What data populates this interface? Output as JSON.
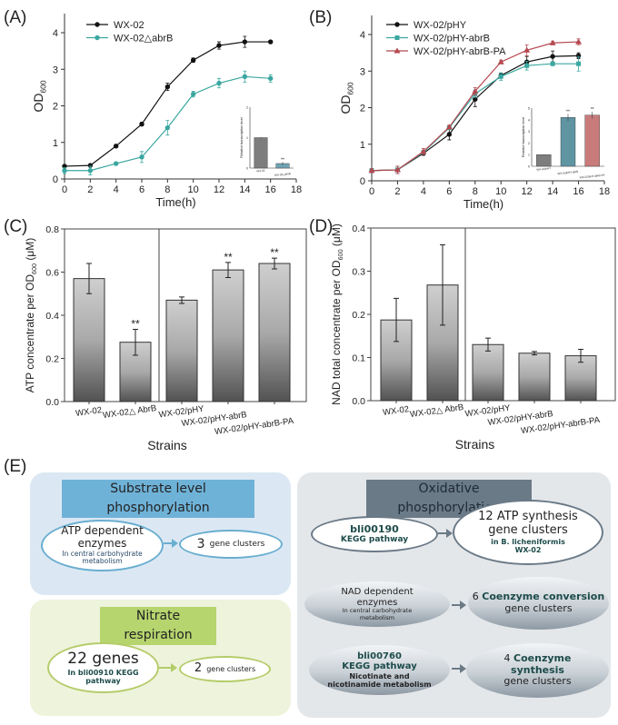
{
  "panel_labels": {
    "a": "(A)",
    "b": "(B)",
    "c": "(C)",
    "d": "(D)",
    "e": "(E)"
  },
  "chart_data": [
    {
      "id": "A",
      "type": "line",
      "xlabel": "Time(h)",
      "ylabel": "OD",
      "ylabel_sub": "600",
      "xlim": [
        0,
        18
      ],
      "ylim": [
        0,
        4.4
      ],
      "xticks": [
        0,
        2,
        4,
        6,
        8,
        10,
        12,
        14,
        16,
        18
      ],
      "yticks": [
        0,
        1,
        2,
        3,
        4
      ],
      "x": [
        0,
        2,
        4,
        6,
        8,
        10,
        12,
        14,
        16
      ],
      "series": [
        {
          "name": "WX-02",
          "color": "#111111",
          "marker": "circle",
          "values": [
            0.35,
            0.37,
            0.9,
            1.5,
            2.52,
            3.25,
            3.65,
            3.75,
            3.75
          ],
          "err": [
            0.04,
            0.03,
            0.04,
            0.05,
            0.1,
            0.06,
            0.1,
            0.15,
            0.04
          ]
        },
        {
          "name": "WX-02△abrB",
          "color": "#3aa7a0",
          "marker": "circle",
          "values": [
            0.23,
            0.23,
            0.42,
            0.6,
            1.4,
            2.32,
            2.62,
            2.8,
            2.75
          ],
          "err": [
            0.08,
            0.12,
            0.03,
            0.15,
            0.2,
            0.08,
            0.13,
            0.15,
            0.1
          ]
        }
      ],
      "inset": {
        "type": "bar",
        "ylabel": "Relative transcription level",
        "yticks": [
          0,
          1,
          2
        ],
        "ylim": [
          0,
          2
        ],
        "categories": [
          "WX-02",
          "WX-02△abrB"
        ],
        "values": [
          1.0,
          0.15
        ],
        "err": [
          0.02,
          0.05
        ],
        "colors": [
          "#7d7d7d",
          "#6fa3b4"
        ],
        "stars": [
          "",
          "**"
        ]
      }
    },
    {
      "id": "B",
      "type": "line",
      "xlabel": "Time(h)",
      "ylabel": "OD",
      "ylabel_sub": "600",
      "xlim": [
        0,
        18
      ],
      "ylim": [
        0,
        4.4
      ],
      "xticks": [
        0,
        2,
        4,
        6,
        8,
        10,
        12,
        14,
        16,
        18
      ],
      "yticks": [
        0,
        1,
        2,
        3,
        4
      ],
      "x": [
        0,
        2,
        4,
        6,
        8,
        10,
        12,
        14,
        16
      ],
      "series": [
        {
          "name": "WX-02/pHY",
          "color": "#111111",
          "marker": "circle",
          "values": [
            0.28,
            0.3,
            0.75,
            1.27,
            2.23,
            2.88,
            3.25,
            3.4,
            3.42
          ],
          "err": [
            0.05,
            0.1,
            0.05,
            0.15,
            0.2,
            0.07,
            0.15,
            0.15,
            0.08
          ]
        },
        {
          "name": "WX-02/pHY-abrB",
          "color": "#3aa7a0",
          "marker": "square",
          "values": [
            0.28,
            0.3,
            0.78,
            1.45,
            2.38,
            2.85,
            3.15,
            3.2,
            3.2
          ],
          "err": [
            0.05,
            0.1,
            0.05,
            0.05,
            0.1,
            0.1,
            0.12,
            0.05,
            0.2
          ]
        },
        {
          "name": "WX-02/pHY-abrB-PA",
          "color": "#b5474f",
          "marker": "triangle",
          "values": [
            0.28,
            0.3,
            0.8,
            1.47,
            2.45,
            3.25,
            3.57,
            3.77,
            3.8
          ],
          "err": [
            0.05,
            0.1,
            0.08,
            0.05,
            0.1,
            0.05,
            0.15,
            0.05,
            0.08
          ]
        }
      ],
      "inset": {
        "type": "bar",
        "ylabel": "Relative transcription level",
        "yticks": [
          0,
          1,
          2,
          3,
          4,
          5
        ],
        "ylim": [
          0,
          5
        ],
        "categories": [
          "WX-02/pHY",
          "WX-02/pHY-abrB",
          "WX-02/pHY-abrB-PA"
        ],
        "values": [
          1.0,
          4.2,
          4.4
        ],
        "err": [
          0.03,
          0.3,
          0.3
        ],
        "colors": [
          "#7d7d7d",
          "#5f95a3",
          "#c97b7b"
        ],
        "stars": [
          "",
          "**",
          "**"
        ]
      }
    },
    {
      "id": "C",
      "type": "bar",
      "xlabel": "Strains",
      "ylabel": "ATP concentrate per OD",
      "ylabel_sub": "600",
      "ylabel_unit": " (μM)",
      "ylim": [
        0,
        0.8
      ],
      "yticks": [
        "0.0",
        "0.2",
        "0.4",
        "0.6",
        "0.8"
      ],
      "categories": [
        "WX-02",
        "WX-02△ AbrB",
        "WX-02/pHY",
        "WX-02/pHY-abrB",
        "WX-02/pHY-abrB-PA"
      ],
      "values": [
        0.57,
        0.275,
        0.47,
        0.61,
        0.64
      ],
      "err": [
        0.07,
        0.06,
        0.015,
        0.035,
        0.025
      ],
      "stars": [
        "",
        "**",
        "",
        "**",
        "**"
      ]
    },
    {
      "id": "D",
      "type": "bar",
      "xlabel": "Strains",
      "ylabel": "NAD total concentrate per OD",
      "ylabel_sub": "600",
      "ylabel_unit": " (μM)",
      "ylim": [
        0,
        0.4
      ],
      "yticks": [
        "0.0",
        "0.1",
        "0.2",
        "0.3",
        "0.4"
      ],
      "categories": [
        "WX-02",
        "WX-02△ AbrB",
        "WX-02/pHY",
        "WX-02/pHY-abrB",
        "WX-02/pHY-abrB-PA"
      ],
      "values": [
        0.187,
        0.268,
        0.13,
        0.11,
        0.104
      ],
      "err": [
        0.05,
        0.093,
        0.015,
        0.004,
        0.015
      ],
      "stars": [
        "",
        "",
        "",
        "",
        ""
      ]
    }
  ],
  "diagram": {
    "substrate": {
      "title": "Substrate level phosphorylation",
      "e1_main": "ATP dependent enzymes",
      "e1_sub": "In central carbohydrate metabolism",
      "e2_num": "3",
      "e2_text": "gene clusters"
    },
    "nitrate": {
      "title": "Nitrate respiration",
      "e1_main": "22 genes",
      "e1_sub": "In bli00910 KEGG pathway",
      "e2_num": "2",
      "e2_text": "gene clusters"
    },
    "oxidative": {
      "title": "Oxidative phosphorylation",
      "r1_l1": "bli00190",
      "r1_l2": "KEGG pathway",
      "r1_main": "12 ATP synthesis gene clusters",
      "r1_sub1": "in B. licheniformis",
      "r1_sub2": "WX-02",
      "r2_l1": "NAD dependent enzymes",
      "r2_l2": "In central carbohydrate metabolism",
      "r2_num": "6",
      "r2_b": "Coenzyme conversion",
      "r2_c": "gene clusters",
      "r3_l1": "bli00760",
      "r3_l2": "KEGG pathway",
      "r3_l3": "Nicotinate and nicotinamide metabolism",
      "r3_num": "4",
      "r3_b": "Coenzyme synthesis",
      "r3_c": "gene clusters"
    }
  }
}
